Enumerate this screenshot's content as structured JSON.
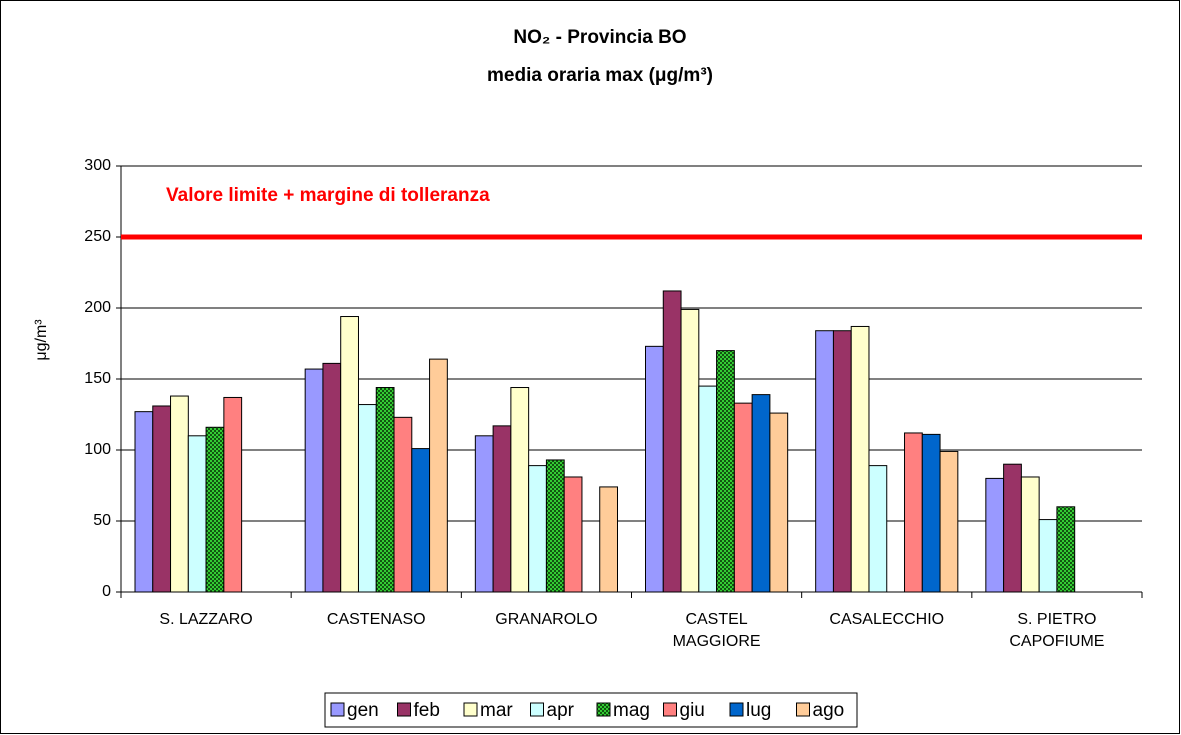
{
  "chart_data": {
    "type": "bar",
    "title": "NO₂ - Provincia BO",
    "subtitle": "media oraria max (μg/m³)",
    "y_label": "μg/m³",
    "categories": [
      "S. LAZZARO",
      "CASTENASO",
      "GRANAROLO",
      "CASTEL\nMAGGIORE",
      "CASALECCHIO",
      "S. PIETRO\nCAPOFIUME"
    ],
    "series": [
      {
        "name": "gen",
        "color": "#9999ff",
        "values": [
          127,
          157,
          110,
          173,
          184,
          80
        ]
      },
      {
        "name": "feb",
        "color": "#993366",
        "values": [
          131,
          161,
          117,
          212,
          184,
          90
        ]
      },
      {
        "name": "mar",
        "color": "#ffffcc",
        "values": [
          138,
          194,
          144,
          199,
          187,
          81
        ]
      },
      {
        "name": "apr",
        "color": "#ccffff",
        "values": [
          110,
          132,
          89,
          145,
          89,
          51
        ]
      },
      {
        "name": "mag",
        "color": "#33cc33",
        "values": [
          116,
          144,
          93,
          170,
          null,
          60
        ]
      },
      {
        "name": "giu",
        "color": "#ff8080",
        "values": [
          137,
          123,
          81,
          133,
          112,
          null
        ]
      },
      {
        "name": "lug",
        "color": "#0066cc",
        "values": [
          null,
          101,
          null,
          139,
          111,
          null
        ]
      },
      {
        "name": "ago",
        "color": "#ffcc99",
        "values": [
          null,
          164,
          74,
          126,
          99,
          null
        ]
      }
    ],
    "reference_line": {
      "value": 250,
      "label": "Valore limite + margine di tolleranza",
      "color": "#ff0000"
    },
    "ylim": [
      0,
      300
    ],
    "yticks": [
      0,
      50,
      100,
      150,
      200,
      250,
      300
    ],
    "grid": true,
    "legend": "bottom"
  }
}
